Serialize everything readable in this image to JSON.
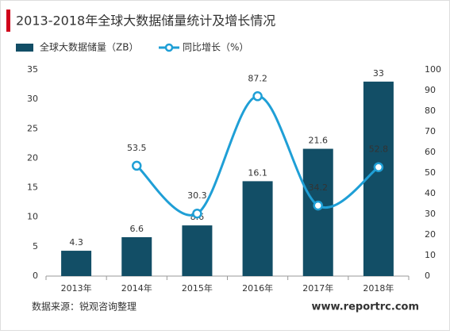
{
  "chart_data": {
    "type": "bar",
    "title": "2013-2018年全球大数据储量统计及增长情况",
    "categories": [
      "2013年",
      "2014年",
      "2015年",
      "2016年",
      "2017年",
      "2018年"
    ],
    "series": [
      {
        "name": "全球大数据储量（ZB）",
        "type": "bar",
        "color": "#124e66",
        "values": [
          4.3,
          6.6,
          8.6,
          16.1,
          21.6,
          33
        ]
      },
      {
        "name": "同比增长（%）",
        "type": "line",
        "axis": "y2",
        "color": "#1f9fd6",
        "values": [
          null,
          53.5,
          30.3,
          87.2,
          34.2,
          52.8
        ]
      }
    ],
    "ylim": [
      0,
      35
    ],
    "yticks": [
      0,
      5,
      10,
      15,
      20,
      25,
      30,
      35
    ],
    "y2lim": [
      0,
      100
    ],
    "y2ticks": [
      0,
      10,
      20,
      30,
      40,
      50,
      60,
      70,
      80,
      90,
      100
    ],
    "grid": false,
    "source": "数据来源：锐观咨询整理",
    "watermark": "www.reportrc.com"
  }
}
